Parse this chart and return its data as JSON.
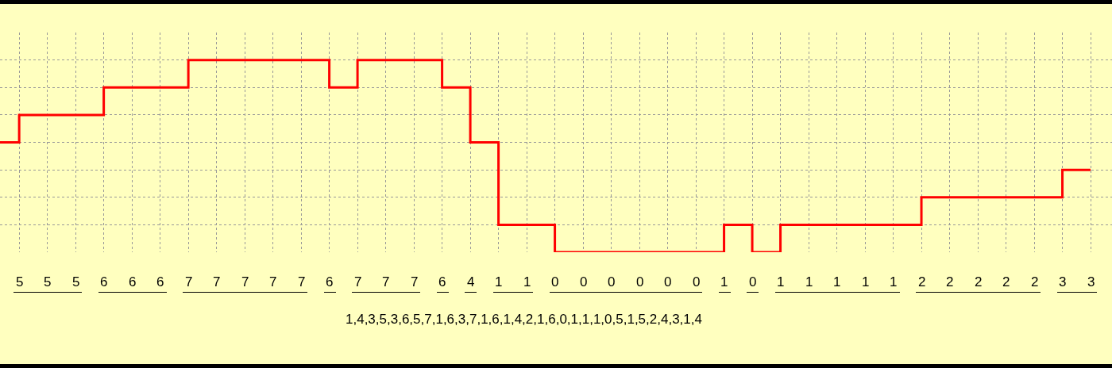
{
  "chart_data": {
    "type": "step",
    "categories": [
      null,
      null,
      null,
      null,
      null,
      null,
      null,
      null,
      null,
      null,
      null,
      null,
      null,
      null,
      null,
      null,
      null,
      null,
      null,
      null,
      null,
      null,
      null,
      null,
      null,
      null,
      null,
      null,
      null,
      null,
      null,
      null,
      null,
      null,
      null,
      null,
      null,
      null,
      null,
      null
    ],
    "series": [
      {
        "color": "#ff0000",
        "values": [
          4,
          5,
          5,
          5,
          6,
          6,
          6,
          7,
          7,
          7,
          7,
          7,
          6,
          7,
          7,
          7,
          6,
          4,
          1,
          1,
          0,
          0,
          0,
          0,
          0,
          0,
          1,
          0,
          1,
          1,
          1,
          1,
          1,
          2,
          2,
          2,
          2,
          2,
          3,
          3
        ],
        "value_labels": [
          null,
          "5",
          "5",
          "5",
          "6",
          "6",
          "6",
          "7",
          "7",
          "7",
          "7",
          "7",
          "6",
          "7",
          "7",
          "7",
          "6",
          "4",
          "1",
          "1",
          "0",
          "0",
          "0",
          "0",
          "0",
          "0",
          "1",
          "0",
          "1",
          "1",
          "1",
          "1",
          "1",
          "2",
          "2",
          "2",
          "2",
          "2",
          "3",
          "3"
        ]
      }
    ],
    "ylim": [
      0,
      8
    ],
    "grid": true,
    "marker": "none",
    "line_style": "solid",
    "annotations": [
      "1,4,3,5,3,6,5,7,1,6,3,7,1,6,1,4,2,1,6,0,1,1,1,0,5,1,5,2,4,3,1,4"
    ]
  }
}
